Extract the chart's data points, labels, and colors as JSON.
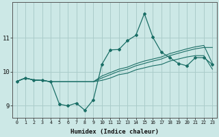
{
  "title": "",
  "xlabel": "Humidex (Indice chaleur)",
  "ylabel": "",
  "bg_color": "#cce8e6",
  "grid_color": "#aaccca",
  "line_color": "#1a6e66",
  "x_ticks": [
    0,
    1,
    2,
    3,
    4,
    5,
    6,
    7,
    8,
    9,
    10,
    11,
    12,
    13,
    14,
    15,
    16,
    17,
    18,
    19,
    20,
    21,
    22,
    23
  ],
  "y_ticks": [
    9,
    10,
    11
  ],
  "xlim": [
    -0.5,
    23.5
  ],
  "ylim": [
    8.65,
    12.05
  ],
  "main_line_x": [
    0,
    1,
    2,
    3,
    4,
    5,
    6,
    7,
    8,
    9,
    10,
    11,
    12,
    13,
    14,
    15,
    16,
    17,
    18,
    19,
    20,
    21,
    22,
    23
  ],
  "main_line_y": [
    9.72,
    9.82,
    9.76,
    9.75,
    9.71,
    9.05,
    9.0,
    9.08,
    8.87,
    9.18,
    10.22,
    10.65,
    10.66,
    10.92,
    11.08,
    11.72,
    11.02,
    10.58,
    10.42,
    10.25,
    10.18,
    10.42,
    10.42,
    10.22
  ],
  "line2_y": [
    9.72,
    9.82,
    9.76,
    9.75,
    9.71,
    9.71,
    9.71,
    9.71,
    9.71,
    9.71,
    9.82,
    9.92,
    10.02,
    10.08,
    10.18,
    10.25,
    10.32,
    10.38,
    10.48,
    10.55,
    10.62,
    10.68,
    10.72,
    10.72
  ],
  "line3_y": [
    9.72,
    9.82,
    9.76,
    9.75,
    9.71,
    9.71,
    9.71,
    9.71,
    9.71,
    9.71,
    9.88,
    9.98,
    10.08,
    10.14,
    10.24,
    10.32,
    10.38,
    10.44,
    10.54,
    10.61,
    10.68,
    10.74,
    10.78,
    10.25
  ],
  "line4_y": [
    9.72,
    9.82,
    9.76,
    9.75,
    9.71,
    9.71,
    9.71,
    9.71,
    9.71,
    9.71,
    9.75,
    9.82,
    9.92,
    9.96,
    10.06,
    10.12,
    10.18,
    10.22,
    10.32,
    10.38,
    10.44,
    10.48,
    10.48,
    10.08
  ]
}
